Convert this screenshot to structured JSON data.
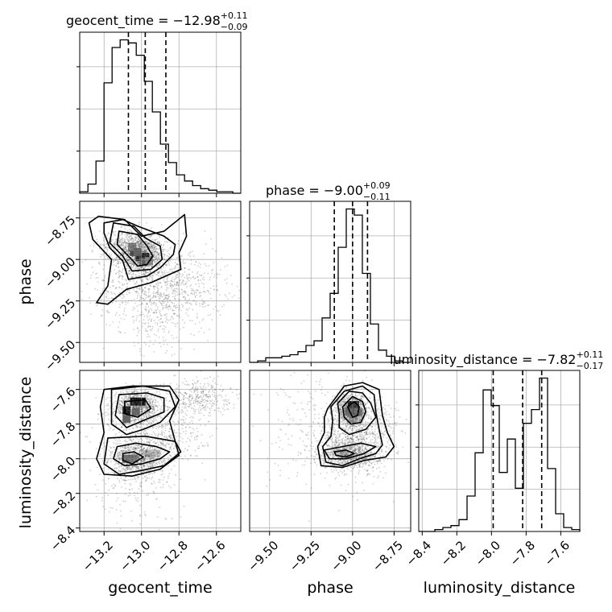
{
  "chart_data": {
    "type": "corner",
    "parameters": [
      {
        "name": "geocent_time",
        "xlabel": "geocent_time",
        "ylabel": "",
        "range": [
          -13.33,
          -12.47
        ],
        "ticks": [
          -13.2,
          -13.0,
          -12.8,
          -12.6
        ],
        "tick_labels": [
          "−13.2",
          "−13.0",
          "−12.8",
          "−12.6"
        ]
      },
      {
        "name": "phase",
        "xlabel": "phase",
        "ylabel": "phase",
        "range": [
          -9.62,
          -8.65
        ],
        "ticks": [
          -9.5,
          -9.25,
          -9.0,
          -8.75
        ],
        "tick_labels": [
          "−9.50",
          "−9.25",
          "−9.00",
          "−8.75"
        ]
      },
      {
        "name": "luminosity_distance",
        "xlabel": "luminosity_distance",
        "ylabel": "luminosity_distance",
        "range": [
          -8.42,
          -7.49
        ],
        "ticks": [
          -8.4,
          -8.2,
          -8.0,
          -7.8,
          -7.6
        ],
        "tick_labels": [
          "−8.4",
          "−8.2",
          "−8.0",
          "−7.8",
          "−7.6"
        ]
      }
    ],
    "diagonal_titles": [
      {
        "base": "geocent_time = −12.98",
        "sup": "+0.11",
        "sub": "−0.09"
      },
      {
        "base": "phase = −9.00",
        "sup": "+0.09",
        "sub": "−0.11"
      },
      {
        "base": "luminosity_distance = −7.82",
        "sup": "+0.11",
        "sub": "−0.17"
      }
    ],
    "quantiles": [
      [
        -13.07,
        -12.98,
        -12.87
      ],
      [
        -9.11,
        -9.0,
        -8.91
      ],
      [
        -7.99,
        -7.82,
        -7.71
      ]
    ],
    "histograms": [
      {
        "edges": [
          -13.33,
          -13.286,
          -13.243,
          -13.2,
          -13.157,
          -13.114,
          -13.071,
          -13.028,
          -12.985,
          -12.942,
          -12.899,
          -12.856,
          -12.813,
          -12.77,
          -12.727,
          -12.684,
          -12.641,
          -12.598,
          -12.555,
          -12.512,
          -12.47
        ],
        "counts": [
          1,
          6,
          21,
          72,
          95,
          100,
          98,
          90,
          73,
          53,
          32,
          20,
          12,
          8,
          5,
          3,
          2,
          1,
          1,
          0
        ]
      },
      {
        "edges": [
          -9.62,
          -9.5715,
          -9.523,
          -9.4745,
          -9.426,
          -9.3775,
          -9.329,
          -9.2805,
          -9.232,
          -9.1835,
          -9.135,
          -9.0865,
          -9.038,
          -8.9895,
          -8.941,
          -8.8925,
          -8.844,
          -8.7955,
          -8.747,
          -8.6985,
          -8.65
        ],
        "counts": [
          0,
          1,
          3,
          3,
          4,
          5,
          7,
          11,
          14,
          29,
          45,
          75,
          100,
          96,
          58,
          25,
          8,
          4,
          1,
          0
        ]
      },
      {
        "edges": [
          -8.42,
          -8.3735,
          -8.327,
          -8.2805,
          -8.234,
          -8.1875,
          -8.141,
          -8.0945,
          -8.048,
          -8.0015,
          -7.955,
          -7.9085,
          -7.862,
          -7.8155,
          -7.769,
          -7.7225,
          -7.676,
          -7.6295,
          -7.583,
          -7.5365,
          -7.49
        ],
        "counts": [
          0,
          0,
          1,
          2,
          3,
          6,
          18,
          40,
          72,
          64,
          30,
          47,
          22,
          55,
          62,
          78,
          32,
          9,
          2,
          1
        ]
      }
    ],
    "scatter": [
      {
        "x": "geocent_time",
        "y": "phase",
        "clusters": [
          {
            "cx": -13.0,
            "cy": -8.98,
            "sx": 0.065,
            "sy": 0.055,
            "n": 1050
          },
          {
            "cx": -13.06,
            "cy": -8.91,
            "sx": 0.08,
            "sy": 0.05,
            "n": 500
          },
          {
            "cx": -12.9,
            "cy": -9.15,
            "sx": 0.18,
            "sy": 0.11,
            "n": 850
          },
          {
            "cx": -12.9,
            "cy": -9.33,
            "sx": 0.1,
            "sy": 0.12,
            "n": 250
          }
        ]
      },
      {
        "x": "geocent_time",
        "y": "luminosity_distance",
        "clusters": [
          {
            "cx": -13.03,
            "cy": -7.7,
            "sx": 0.06,
            "sy": 0.045,
            "n": 950
          },
          {
            "cx": -13.02,
            "cy": -8.0,
            "sx": 0.07,
            "sy": 0.045,
            "n": 850
          },
          {
            "cx": -12.92,
            "cy": -7.85,
            "sx": 0.13,
            "sy": 0.1,
            "n": 600
          },
          {
            "cx": -12.7,
            "cy": -7.64,
            "sx": 0.09,
            "sy": 0.05,
            "n": 350
          },
          {
            "cx": -13.05,
            "cy": -8.1,
            "sx": 0.12,
            "sy": 0.14,
            "n": 250
          }
        ]
      },
      {
        "x": "phase",
        "y": "luminosity_distance",
        "clusters": [
          {
            "cx": -9.0,
            "cy": -7.72,
            "sx": 0.045,
            "sy": 0.045,
            "n": 1000
          },
          {
            "cx": -9.02,
            "cy": -7.97,
            "sx": 0.09,
            "sy": 0.045,
            "n": 850
          },
          {
            "cx": -8.97,
            "cy": -7.85,
            "sx": 0.12,
            "sy": 0.1,
            "n": 700
          },
          {
            "cx": -9.15,
            "cy": -7.85,
            "sx": 0.2,
            "sy": 0.18,
            "n": 300
          }
        ]
      }
    ],
    "density_cells": [
      [
        {
          "x": -13.01,
          "y": -8.985,
          "level": 1.0
        },
        {
          "x": -12.98,
          "y": -8.985,
          "level": 1.0
        },
        {
          "x": -13.04,
          "y": -8.955,
          "level": 0.75
        },
        {
          "x": -12.99,
          "y": -9.015,
          "level": 0.6
        },
        {
          "x": -13.05,
          "y": -8.925,
          "level": 0.45
        },
        {
          "x": -12.96,
          "y": -9.01,
          "level": 0.4
        },
        {
          "x": -13.02,
          "y": -8.955,
          "level": 0.55
        }
      ],
      [
        {
          "x": -13.04,
          "y": -7.67,
          "level": 1.0
        },
        {
          "x": -13.0,
          "y": -7.67,
          "level": 1.0
        },
        {
          "x": -13.08,
          "y": -7.72,
          "level": 0.95
        },
        {
          "x": -13.08,
          "y": -7.77,
          "level": 0.6
        },
        {
          "x": -13.03,
          "y": -7.73,
          "level": 0.55
        },
        {
          "x": -13.08,
          "y": -8.0,
          "level": 0.55
        },
        {
          "x": -13.04,
          "y": -8.0,
          "level": 0.45
        },
        {
          "x": -12.96,
          "y": -7.97,
          "level": 0.25
        },
        {
          "x": -12.92,
          "y": -7.97,
          "level": 0.2
        }
      ],
      [
        {
          "x": -9.005,
          "y": -7.69,
          "level": 1.0
        },
        {
          "x": -8.985,
          "y": -7.69,
          "level": 0.9
        },
        {
          "x": -8.985,
          "y": -7.73,
          "level": 0.65
        },
        {
          "x": -9.02,
          "y": -7.73,
          "level": 0.5
        },
        {
          "x": -8.965,
          "y": -7.73,
          "level": 0.45
        },
        {
          "x": -9.0,
          "y": -7.77,
          "level": 0.3
        },
        {
          "x": -9.05,
          "y": -7.97,
          "level": 0.25
        }
      ]
    ],
    "contours": [
      [
        [
          [
            -13.12,
            -8.83
          ],
          [
            -13.02,
            -8.85
          ],
          [
            -12.97,
            -8.92
          ],
          [
            -12.94,
            -8.98
          ],
          [
            -12.97,
            -9.03
          ],
          [
            -13.02,
            -9.04
          ],
          [
            -13.07,
            -8.98
          ],
          [
            -13.13,
            -8.91
          ]
        ],
        [
          [
            -13.15,
            -8.78
          ],
          [
            -13.04,
            -8.8
          ],
          [
            -12.98,
            -8.87
          ],
          [
            -12.9,
            -8.92
          ],
          [
            -12.89,
            -9.0
          ],
          [
            -12.95,
            -9.06
          ],
          [
            -13.05,
            -9.07
          ],
          [
            -13.1,
            -8.98
          ],
          [
            -13.17,
            -8.9
          ]
        ],
        [
          [
            -13.2,
            -8.78
          ],
          [
            -13.1,
            -8.76
          ],
          [
            -13.02,
            -8.8
          ],
          [
            -12.88,
            -8.86
          ],
          [
            -12.82,
            -8.91
          ],
          [
            -12.83,
            -8.97
          ],
          [
            -12.9,
            -9.05
          ],
          [
            -12.97,
            -9.1
          ],
          [
            -13.07,
            -9.12
          ],
          [
            -13.1,
            -9.01
          ],
          [
            -13.17,
            -8.93
          ],
          [
            -13.2,
            -8.84
          ]
        ],
        [
          [
            -13.23,
            -8.74
          ],
          [
            -13.09,
            -8.76
          ],
          [
            -13.0,
            -8.86
          ],
          [
            -12.88,
            -8.83
          ],
          [
            -12.77,
            -8.73
          ],
          [
            -12.76,
            -8.86
          ],
          [
            -12.8,
            -8.96
          ],
          [
            -12.79,
            -9.06
          ],
          [
            -12.95,
            -9.14
          ],
          [
            -13.08,
            -9.18
          ],
          [
            -13.18,
            -9.27
          ],
          [
            -13.24,
            -9.26
          ],
          [
            -13.18,
            -9.16
          ],
          [
            -13.16,
            -9.0
          ],
          [
            -13.26,
            -8.88
          ],
          [
            -13.28,
            -8.78
          ]
        ]
      ],
      [
        [
          [
            -13.09,
            -7.67
          ],
          [
            -12.98,
            -7.66
          ],
          [
            -12.95,
            -7.71
          ],
          [
            -13.02,
            -7.76
          ],
          [
            -13.09,
            -7.74
          ]
        ],
        [
          [
            -13.1,
            -7.97
          ],
          [
            -13.04,
            -7.96
          ],
          [
            -12.99,
            -7.99
          ],
          [
            -13.05,
            -8.03
          ],
          [
            -13.1,
            -8.01
          ]
        ],
        [
          [
            -13.12,
            -7.63
          ],
          [
            -12.97,
            -7.62
          ],
          [
            -12.88,
            -7.65
          ],
          [
            -12.88,
            -7.73
          ],
          [
            -12.97,
            -7.77
          ],
          [
            -13.08,
            -7.82
          ],
          [
            -13.14,
            -7.75
          ]
        ],
        [
          [
            -13.13,
            -7.93
          ],
          [
            -13.03,
            -7.91
          ],
          [
            -12.92,
            -7.93
          ],
          [
            -12.85,
            -7.96
          ],
          [
            -12.9,
            -8.0
          ],
          [
            -13.0,
            -8.03
          ],
          [
            -13.09,
            -8.04
          ],
          [
            -13.15,
            -8.0
          ]
        ],
        [
          [
            -13.16,
            -7.6
          ],
          [
            -12.99,
            -7.58
          ],
          [
            -12.85,
            -7.61
          ],
          [
            -12.82,
            -7.7
          ],
          [
            -12.9,
            -7.79
          ],
          [
            -12.99,
            -7.83
          ],
          [
            -13.08,
            -7.86
          ],
          [
            -13.16,
            -7.8
          ]
        ],
        [
          [
            -13.18,
            -7.88
          ],
          [
            -12.98,
            -7.87
          ],
          [
            -12.82,
            -7.9
          ],
          [
            -12.79,
            -7.96
          ],
          [
            -12.88,
            -8.04
          ],
          [
            -13.01,
            -8.07
          ],
          [
            -13.12,
            -8.09
          ],
          [
            -13.2,
            -8.03
          ]
        ],
        [
          [
            -13.2,
            -7.6
          ],
          [
            -13.05,
            -7.58
          ],
          [
            -12.85,
            -7.58
          ],
          [
            -12.8,
            -7.66
          ],
          [
            -12.85,
            -7.78
          ],
          [
            -12.82,
            -7.9
          ],
          [
            -12.8,
            -7.98
          ],
          [
            -12.9,
            -8.06
          ],
          [
            -13.05,
            -8.1
          ],
          [
            -13.2,
            -8.09
          ],
          [
            -13.24,
            -8.0
          ],
          [
            -13.2,
            -7.85
          ],
          [
            -13.22,
            -7.7
          ]
        ]
      ],
      [
        [
          [
            -9.03,
            -7.7
          ],
          [
            -8.99,
            -7.67
          ],
          [
            -8.96,
            -7.7
          ],
          [
            -8.97,
            -7.75
          ],
          [
            -9.0,
            -7.76
          ]
        ],
        [
          [
            -9.11,
            -7.96
          ],
          [
            -9.04,
            -7.95
          ],
          [
            -8.99,
            -7.97
          ],
          [
            -9.04,
            -7.99
          ],
          [
            -9.1,
            -7.98
          ]
        ],
        [
          [
            -9.06,
            -7.7
          ],
          [
            -9.0,
            -7.64
          ],
          [
            -8.94,
            -7.67
          ],
          [
            -8.92,
            -7.73
          ],
          [
            -8.95,
            -7.79
          ],
          [
            -9.01,
            -7.8
          ],
          [
            -9.05,
            -7.76
          ]
        ],
        [
          [
            -9.17,
            -7.95
          ],
          [
            -9.06,
            -7.93
          ],
          [
            -8.95,
            -7.91
          ],
          [
            -8.86,
            -7.93
          ],
          [
            -8.93,
            -7.97
          ],
          [
            -9.04,
            -8.0
          ],
          [
            -9.14,
            -8.0
          ]
        ],
        [
          [
            -9.09,
            -7.68
          ],
          [
            -9.02,
            -7.61
          ],
          [
            -8.94,
            -7.62
          ],
          [
            -8.89,
            -7.68
          ],
          [
            -8.86,
            -7.76
          ],
          [
            -8.92,
            -7.83
          ],
          [
            -9.02,
            -7.86
          ],
          [
            -9.08,
            -7.82
          ],
          [
            -9.08,
            -7.74
          ]
        ],
        [
          [
            -9.13,
            -7.7
          ],
          [
            -9.05,
            -7.61
          ],
          [
            -8.94,
            -7.58
          ],
          [
            -8.87,
            -7.63
          ],
          [
            -8.86,
            -7.73
          ],
          [
            -8.84,
            -7.83
          ],
          [
            -8.82,
            -7.92
          ],
          [
            -8.86,
            -7.97
          ],
          [
            -8.96,
            -8.0
          ],
          [
            -9.06,
            -8.04
          ],
          [
            -9.16,
            -8.02
          ],
          [
            -9.18,
            -7.93
          ],
          [
            -9.13,
            -7.87
          ],
          [
            -9.12,
            -7.78
          ]
        ],
        [
          [
            -9.15,
            -7.71
          ],
          [
            -9.05,
            -7.58
          ],
          [
            -8.94,
            -7.56
          ],
          [
            -8.84,
            -7.6
          ],
          [
            -8.82,
            -7.75
          ],
          [
            -8.79,
            -7.85
          ],
          [
            -8.75,
            -7.93
          ],
          [
            -8.8,
            -7.99
          ],
          [
            -8.93,
            -8.01
          ],
          [
            -9.06,
            -8.05
          ],
          [
            -9.19,
            -8.04
          ],
          [
            -9.21,
            -7.93
          ],
          [
            -9.17,
            -7.85
          ],
          [
            -9.17,
            -7.76
          ]
        ]
      ]
    ],
    "colors": {
      "hist": "#000000",
      "contour": "#000000",
      "scatter": "#555555",
      "grid": "#b0b0b0"
    },
    "grid": true
  }
}
